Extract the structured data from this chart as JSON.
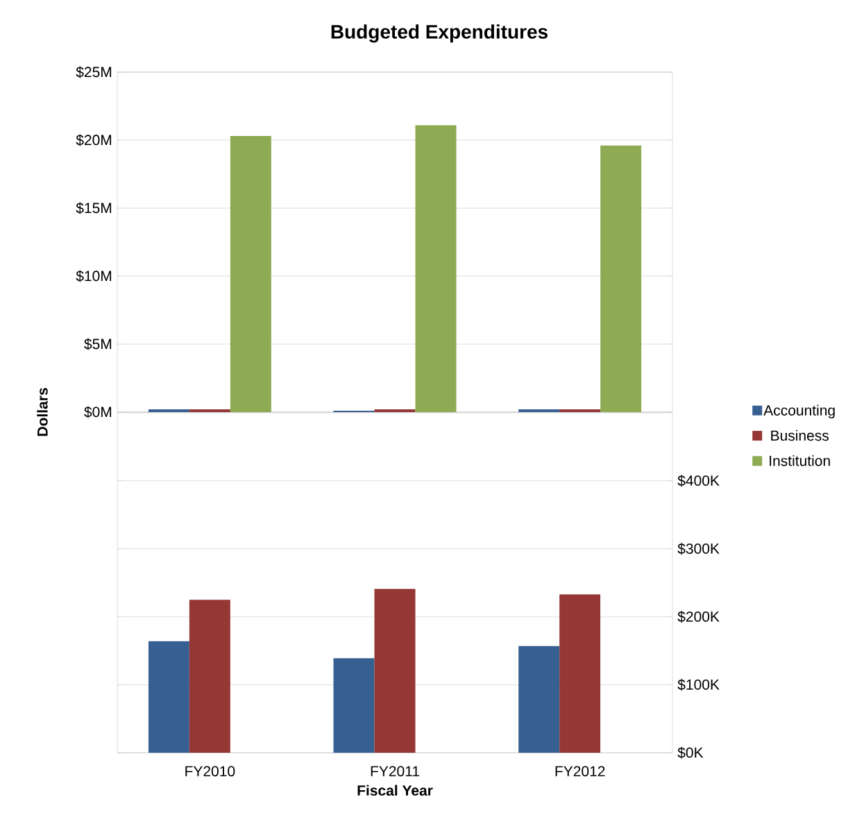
{
  "chart_data": [
    {
      "type": "bar",
      "title": "Budgeted Expenditures",
      "ylabel": "Dollars",
      "categories": [
        null,
        null,
        null
      ],
      "series": [
        {
          "name": "Accounting",
          "color": "#376092",
          "values": [
            0.2,
            0.1,
            0.2
          ]
        },
        {
          "name": "Business",
          "color": "#953735",
          "values": [
            0.2,
            0.2,
            0.2
          ]
        },
        {
          "name": "Institution",
          "color": "#8eaa52",
          "values": [
            20.3,
            21.1,
            19.6
          ]
        }
      ],
      "ylim": [
        0,
        25
      ],
      "yticks": [
        {
          "value": 0,
          "label": "$0M"
        },
        {
          "value": 5,
          "label": "$5M"
        },
        {
          "value": 10,
          "label": "$10M"
        },
        {
          "value": 15,
          "label": "$15M"
        },
        {
          "value": 20,
          "label": "$20M"
        },
        {
          "value": 25,
          "label": "$25M"
        }
      ],
      "grid": "y",
      "legend": "right",
      "tick_labels": "y"
    },
    {
      "type": "bar",
      "xlabel": "Fiscal Year",
      "categories": [
        "FY2010",
        "FY2011",
        "FY2012"
      ],
      "series": [
        {
          "color": "#376092",
          "values": [
            164,
            139,
            157
          ]
        },
        {
          "color": "#953735",
          "values": [
            225,
            241,
            233
          ]
        },
        {
          "color": "#77933c",
          "values": [
            null,
            null,
            null
          ]
        }
      ],
      "ylim": [
        0,
        500
      ],
      "yticks": [
        {
          "value": 0,
          "label": "$0K"
        },
        {
          "value": 100,
          "label": "$100K"
        },
        {
          "value": 200,
          "label": "$200K"
        },
        {
          "value": 300,
          "label": "$300K"
        },
        {
          "value": 400,
          "label": "$400K"
        }
      ],
      "grid": "y"
    }
  ]
}
